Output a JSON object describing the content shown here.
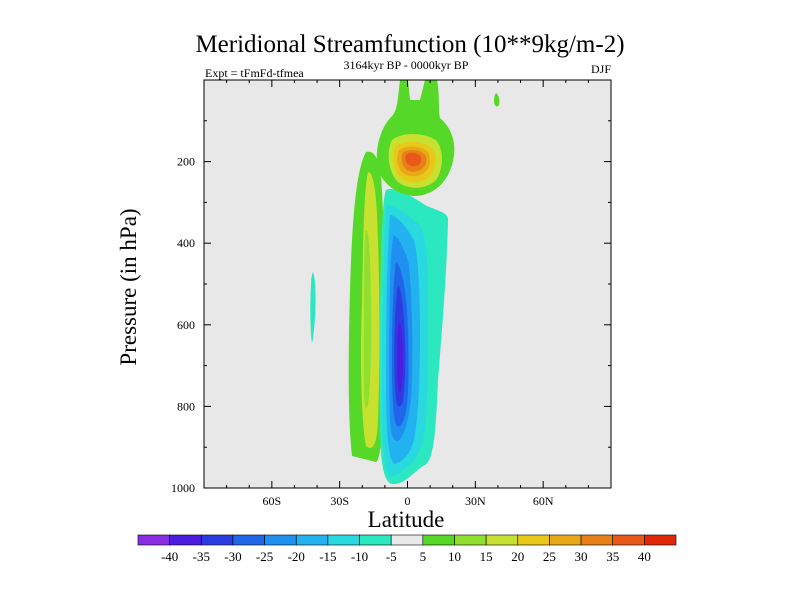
{
  "chart_data": {
    "type": "heatmap",
    "subtype": "filled-contour",
    "title": "Meridional Streamfunction (10**9kg/m-2)",
    "left_subtitle": "Expt = tFmFd-tfmea",
    "center_subtitle": "3164kyr BP - 0000kyr BP",
    "right_subtitle": "DJF",
    "xlabel": "Latitude",
    "ylabel": "Pressure (in hPa)",
    "xlim": [
      -90,
      90
    ],
    "ylim": [
      1000,
      0
    ],
    "x_ticks": [
      {
        "value": -60,
        "label": "60S"
      },
      {
        "value": -30,
        "label": "30S"
      },
      {
        "value": 0,
        "label": "0"
      },
      {
        "value": 30,
        "label": "30N"
      },
      {
        "value": 60,
        "label": "60N"
      }
    ],
    "y_ticks": [
      {
        "value": 200,
        "label": "200"
      },
      {
        "value": 400,
        "label": "400"
      },
      {
        "value": 600,
        "label": "600"
      },
      {
        "value": 800,
        "label": "800"
      },
      {
        "value": 1000,
        "label": "1000"
      }
    ],
    "background_color": "#e8e8e8",
    "colorbar": {
      "levels": [
        -40,
        -35,
        -30,
        -25,
        -20,
        -15,
        -10,
        -5,
        5,
        10,
        15,
        20,
        25,
        30,
        35,
        40
      ],
      "colors": [
        "#8b2be2",
        "#4a1de0",
        "#2b3de0",
        "#1f66e8",
        "#1f8ff0",
        "#22b2f0",
        "#2ad8e0",
        "#2ce8c0",
        "#e8e8e8",
        "#55d828",
        "#8ee030",
        "#c8e030",
        "#e8c818",
        "#e8a818",
        "#e88018",
        "#e85818",
        "#e02808"
      ]
    },
    "features": [
      {
        "name": "sh-positive-cell",
        "sign": "+",
        "peak_value": 10,
        "lat_range": [
          -23,
          -8
        ],
        "pressure_range": [
          180,
          960
        ]
      },
      {
        "name": "negative-cell",
        "sign": "-",
        "peak_value": -38,
        "lat_range": [
          -8,
          14
        ],
        "pressure_range": [
          250,
          985
        ]
      },
      {
        "name": "upper-positive-core",
        "sign": "+",
        "peak_value": 32,
        "lat_range": [
          -6,
          12
        ],
        "pressure_range": [
          0,
          280
        ]
      },
      {
        "name": "weak-negative-spot",
        "sign": "-",
        "peak_value": -8,
        "lat_range": [
          -42,
          -39
        ],
        "pressure_range": [
          470,
          640
        ]
      },
      {
        "name": "weak-positive-spot",
        "sign": "+",
        "peak_value": 6,
        "lat_range": [
          38,
          41
        ],
        "pressure_range": [
          20,
          55
        ]
      }
    ]
  }
}
